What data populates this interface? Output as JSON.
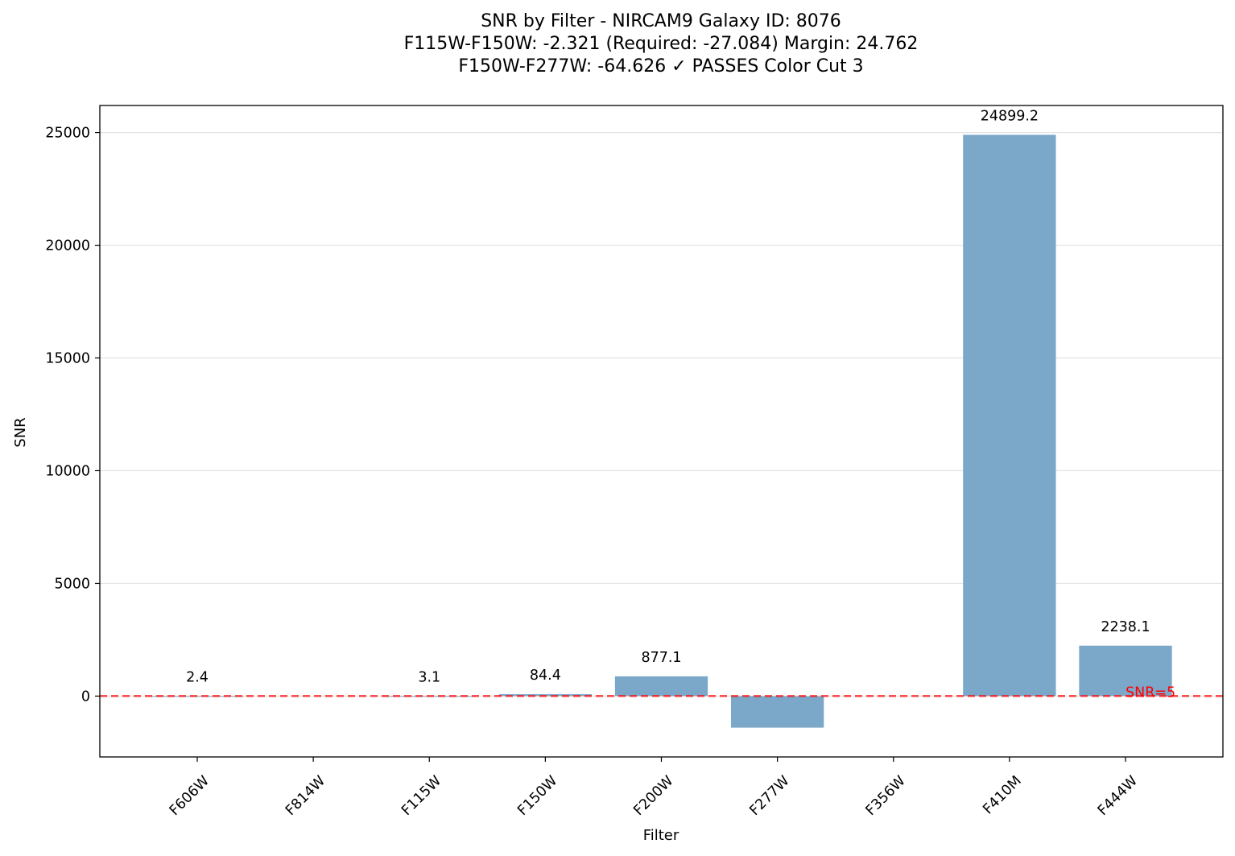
{
  "chart_data": {
    "type": "bar",
    "title_lines": [
      "SNR by Filter - NIRCAM9 Galaxy ID: 8076",
      "F115W-F150W: -2.321 (Required: -27.084) Margin: 24.762",
      "F150W-F277W: -64.626 ✓ PASSES Color Cut 3"
    ],
    "xlabel": "Filter",
    "ylabel": "SNR",
    "categories": [
      "F606W",
      "F814W",
      "F115W",
      "F150W",
      "F200W",
      "F277W",
      "F356W",
      "F410M",
      "F444W"
    ],
    "values": [
      2.4,
      null,
      3.1,
      84.4,
      877.1,
      -1400,
      null,
      24899.2,
      2238.1
    ],
    "data_labels": [
      "2.4",
      "",
      "3.1",
      "84.4",
      "877.1",
      "",
      "",
      "24899.2",
      "2238.1"
    ],
    "ylim": [
      -2700,
      26200
    ],
    "yticks": [
      0,
      5000,
      10000,
      15000,
      20000,
      25000
    ],
    "grid": "y",
    "bar_color": "#7ba7c9",
    "reference_line": {
      "value": 5,
      "label": "SNR=5",
      "color": "#ff0000",
      "style": "dashed"
    }
  }
}
